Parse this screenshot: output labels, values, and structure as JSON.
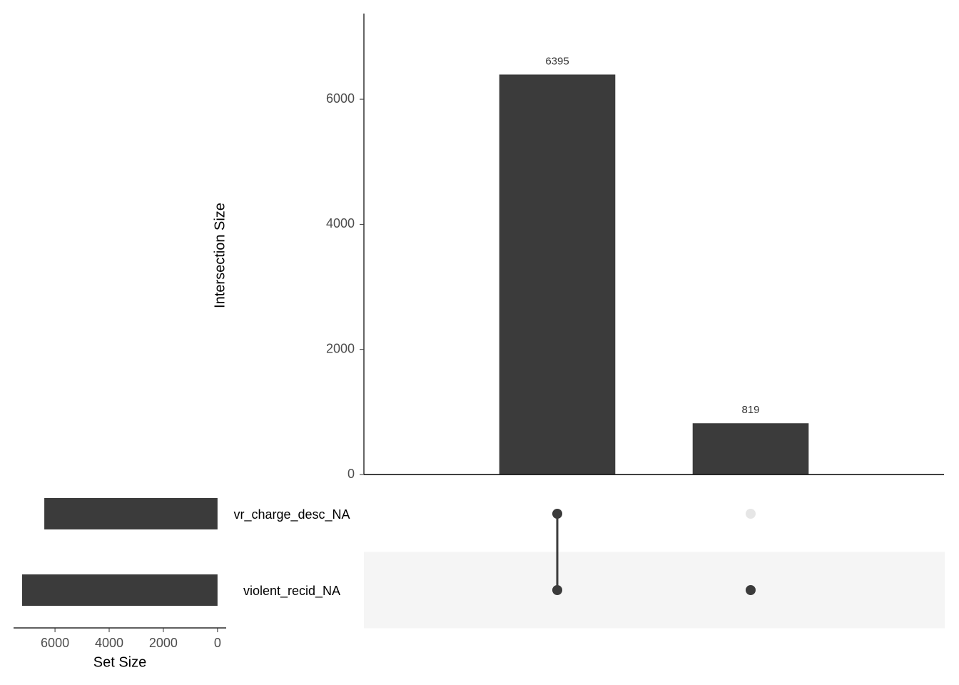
{
  "chart_data": {
    "type": "upset",
    "y_label": "Intersection Size",
    "x_label": "Set Size",
    "sets": [
      "vr_charge_desc_NA",
      "violent_recid_NA"
    ],
    "set_sizes": [
      6395,
      7214
    ],
    "xlim": [
      7530,
      -320
    ],
    "xticks": [
      6000,
      4000,
      2000,
      0
    ],
    "values": [
      6395,
      819
    ],
    "membership": [
      [
        true,
        true
      ],
      [
        false,
        true
      ]
    ],
    "ylim": [
      0,
      7370
    ],
    "yticks": [
      0,
      2000,
      4000,
      6000
    ],
    "color": "#3b3b3b",
    "inactive_color": "#e6e6e6",
    "shade_color": "#f5f5f5"
  }
}
